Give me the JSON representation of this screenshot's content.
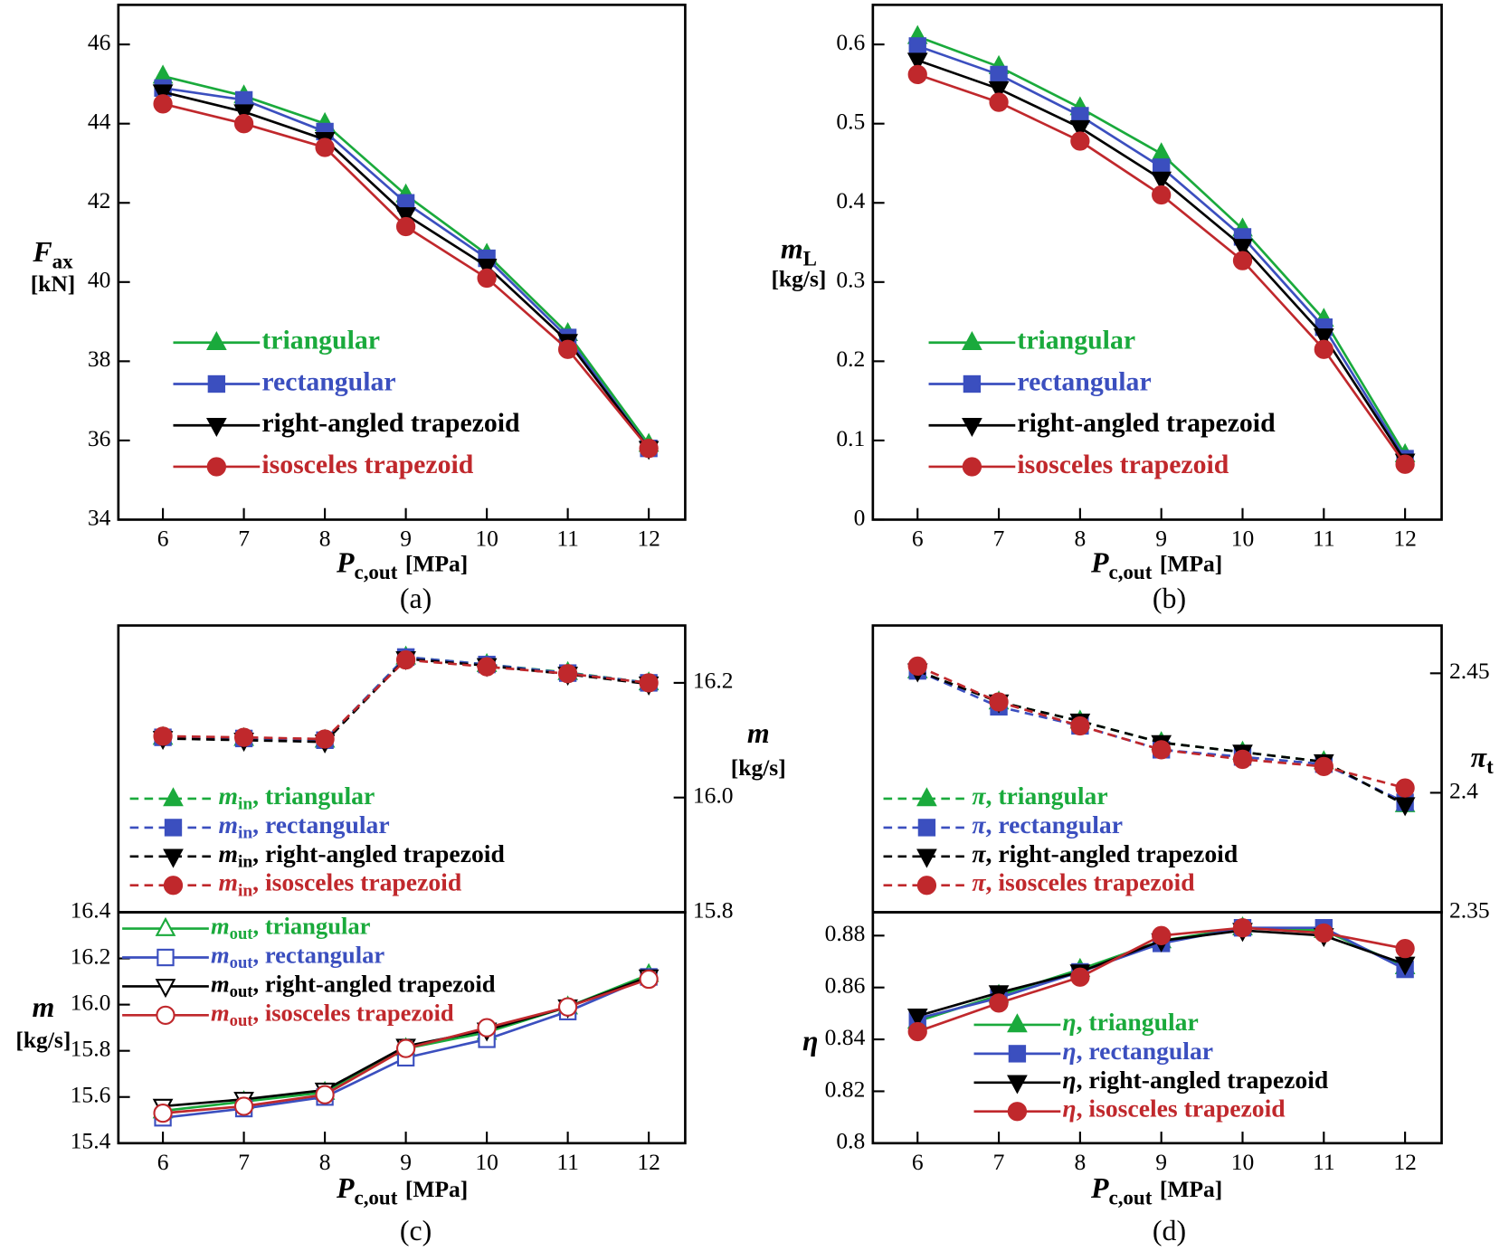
{
  "chart_data": [
    {
      "type": "line",
      "caption": "(a)",
      "xlabel": {
        "text": "P",
        "sub": "c,out",
        "unit": "[MPa]"
      },
      "ylabel": {
        "text": "F",
        "sub": "ax",
        "unit": "[kN]"
      },
      "y_axis_position": "left",
      "x": [
        6,
        7,
        8,
        9,
        10,
        11,
        12
      ],
      "xlim": [
        5.45,
        12.45
      ],
      "xticks": [
        6,
        7,
        8,
        9,
        10,
        11,
        12
      ],
      "ylim": [
        34,
        47
      ],
      "yticks": [
        34,
        36,
        38,
        40,
        42,
        44,
        46
      ],
      "series": [
        {
          "name": "triangular",
          "color": "#1aaa3c",
          "marker": "triangle-up",
          "filled": true,
          "line_style": "solid",
          "values": [
            45.2,
            44.7,
            44.0,
            42.2,
            40.7,
            38.7,
            35.9
          ]
        },
        {
          "name": "rectangular",
          "color": "#3b4fbf",
          "marker": "square",
          "filled": true,
          "line_style": "solid",
          "values": [
            44.9,
            44.6,
            43.8,
            42.0,
            40.6,
            38.6,
            35.8
          ]
        },
        {
          "name": "right-angled trapezoid",
          "color": "#000000",
          "marker": "triangle-down",
          "filled": true,
          "line_style": "solid",
          "values": [
            44.8,
            44.3,
            43.6,
            41.7,
            40.4,
            38.5,
            35.8
          ]
        },
        {
          "name": "isosceles trapezoid",
          "color": "#c0282c",
          "marker": "circle",
          "filled": true,
          "line_style": "solid",
          "values": [
            44.5,
            44.0,
            43.4,
            41.4,
            40.1,
            38.3,
            35.8
          ]
        }
      ]
    },
    {
      "type": "line",
      "caption": "(b)",
      "xlabel": {
        "text": "P",
        "sub": "c,out",
        "unit": "[MPa]"
      },
      "ylabel": {
        "text": "m",
        "sub": "L",
        "unit": "[kg/s]"
      },
      "y_axis_position": "left",
      "x": [
        6,
        7,
        8,
        9,
        10,
        11,
        12
      ],
      "xlim": [
        5.45,
        12.45
      ],
      "xticks": [
        6,
        7,
        8,
        9,
        10,
        11,
        12
      ],
      "ylim": [
        0,
        0.65
      ],
      "yticks": [
        0,
        0.1,
        0.2,
        0.3,
        0.4,
        0.5,
        0.6
      ],
      "series": [
        {
          "name": "triangular",
          "color": "#1aaa3c",
          "marker": "triangle-up",
          "filled": true,
          "line_style": "solid",
          "values": [
            0.61,
            0.572,
            0.52,
            0.462,
            0.367,
            0.253,
            0.082
          ]
        },
        {
          "name": "rectangular",
          "color": "#3b4fbf",
          "marker": "square",
          "filled": true,
          "line_style": "solid",
          "values": [
            0.598,
            0.562,
            0.51,
            0.445,
            0.357,
            0.243,
            0.077
          ]
        },
        {
          "name": "right-angled trapezoid",
          "color": "#000000",
          "marker": "triangle-down",
          "filled": true,
          "line_style": "solid",
          "values": [
            0.58,
            0.544,
            0.495,
            0.43,
            0.345,
            0.232,
            0.074
          ]
        },
        {
          "name": "isosceles trapezoid",
          "color": "#c0282c",
          "marker": "circle",
          "filled": true,
          "line_style": "solid",
          "values": [
            0.562,
            0.527,
            0.478,
            0.41,
            0.327,
            0.215,
            0.07
          ]
        }
      ]
    },
    {
      "type": "line",
      "ylabel": {
        "text": "m",
        "unit": "[kg/s]"
      },
      "y_axis_position": "right",
      "legend_prefix": {
        "symbol": "m",
        "sub": "in",
        "sep": ","
      },
      "x": [
        6,
        7,
        8,
        9,
        10,
        11,
        12
      ],
      "xlim": [
        5.45,
        12.45
      ],
      "ylim": [
        15.8,
        16.3
      ],
      "yticks": [
        15.8,
        {
          "value": 16,
          "label": "16.0"
        },
        16.2
      ],
      "series": [
        {
          "name": "triangular",
          "color": "#1aaa3c",
          "marker": "triangle-up",
          "filled": true,
          "line_style": "dashed",
          "values": [
            16.105,
            16.103,
            16.1,
            16.245,
            16.232,
            16.218,
            16.2
          ]
        },
        {
          "name": "rectangular",
          "color": "#3b4fbf",
          "marker": "square",
          "filled": true,
          "line_style": "dashed",
          "values": [
            16.105,
            16.103,
            16.1,
            16.245,
            16.232,
            16.217,
            16.2
          ]
        },
        {
          "name": "right-angled trapezoid",
          "color": "#000000",
          "marker": "triangle-down",
          "filled": true,
          "line_style": "dashed",
          "values": [
            16.103,
            16.1,
            16.097,
            16.242,
            16.23,
            16.215,
            16.198
          ]
        },
        {
          "name": "isosceles trapezoid",
          "color": "#c0282c",
          "marker": "circle",
          "filled": true,
          "line_style": "dashed",
          "values": [
            16.107,
            16.105,
            16.102,
            16.24,
            16.228,
            16.216,
            16.2
          ]
        }
      ]
    },
    {
      "type": "line",
      "caption": "(c)",
      "xlabel": {
        "text": "P",
        "sub": "c,out",
        "unit": "[MPa]"
      },
      "ylabel": {
        "text": "m",
        "unit": "[kg/s]"
      },
      "y_axis_position": "left",
      "legend_prefix": {
        "symbol": "m",
        "sub": "out",
        "sep": ","
      },
      "x": [
        6,
        7,
        8,
        9,
        10,
        11,
        12
      ],
      "xlim": [
        5.45,
        12.45
      ],
      "xticks": [
        6,
        7,
        8,
        9,
        10,
        11,
        12
      ],
      "ylim": [
        15.4,
        16.4
      ],
      "yticks": [
        15.4,
        15.6,
        15.8,
        {
          "value": 16,
          "label": "16.0"
        },
        16.2,
        16.4
      ],
      "series": [
        {
          "name": "triangular",
          "color": "#1aaa3c",
          "marker": "triangle-up",
          "filled": false,
          "line_style": "solid",
          "values": [
            15.54,
            15.58,
            15.62,
            15.81,
            15.88,
            15.99,
            16.13
          ]
        },
        {
          "name": "rectangular",
          "color": "#3b4fbf",
          "marker": "square",
          "filled": false,
          "line_style": "solid",
          "values": [
            15.51,
            15.55,
            15.6,
            15.77,
            15.85,
            15.97,
            16.12
          ]
        },
        {
          "name": "right-angled trapezoid",
          "color": "#000000",
          "marker": "triangle-down",
          "filled": false,
          "line_style": "solid",
          "values": [
            15.56,
            15.59,
            15.63,
            15.82,
            15.89,
            15.99,
            16.12
          ]
        },
        {
          "name": "isosceles trapezoid",
          "color": "#c0282c",
          "marker": "circle",
          "filled": false,
          "line_style": "solid",
          "values": [
            15.53,
            15.56,
            15.61,
            15.81,
            15.9,
            15.99,
            16.11
          ]
        }
      ]
    },
    {
      "type": "line",
      "ylabel": {
        "text": "π",
        "sub": "t"
      },
      "y_axis_position": "right",
      "legend_prefix": {
        "symbol": "π",
        "sep": ","
      },
      "x": [
        6,
        7,
        8,
        9,
        10,
        11,
        12
      ],
      "xlim": [
        5.45,
        12.45
      ],
      "ylim": [
        2.35,
        2.47
      ],
      "yticks": [
        2.35,
        2.4,
        2.45
      ],
      "series": [
        {
          "name": "triangular",
          "color": "#1aaa3c",
          "marker": "triangle-up",
          "filled": true,
          "line_style": "dashed",
          "values": [
            2.451,
            2.438,
            2.43,
            2.421,
            2.417,
            2.413,
            2.395
          ]
        },
        {
          "name": "rectangular",
          "color": "#3b4fbf",
          "marker": "square",
          "filled": true,
          "line_style": "dashed",
          "values": [
            2.451,
            2.436,
            2.428,
            2.418,
            2.415,
            2.412,
            2.396
          ]
        },
        {
          "name": "right-angled trapezoid",
          "color": "#000000",
          "marker": "triangle-down",
          "filled": true,
          "line_style": "dashed",
          "values": [
            2.451,
            2.438,
            2.43,
            2.421,
            2.417,
            2.413,
            2.395
          ]
        },
        {
          "name": "isosceles trapezoid",
          "color": "#c0282c",
          "marker": "circle",
          "filled": true,
          "line_style": "dashed",
          "values": [
            2.453,
            2.438,
            2.428,
            2.418,
            2.414,
            2.411,
            2.402
          ]
        }
      ]
    },
    {
      "type": "line",
      "caption": "(d)",
      "xlabel": {
        "text": "P",
        "sub": "c,out",
        "unit": "[MPa]"
      },
      "ylabel": {
        "text": "η"
      },
      "y_axis_position": "left",
      "legend_prefix": {
        "symbol": "η",
        "sep": ","
      },
      "x": [
        6,
        7,
        8,
        9,
        10,
        11,
        12
      ],
      "xlim": [
        5.45,
        12.45
      ],
      "xticks": [
        6,
        7,
        8,
        9,
        10,
        11,
        12
      ],
      "ylim": [
        0.8,
        0.889
      ],
      "yticks": [
        0.8,
        0.82,
        0.84,
        0.86,
        0.88
      ],
      "series": [
        {
          "name": "triangular",
          "color": "#1aaa3c",
          "marker": "triangle-up",
          "filled": true,
          "line_style": "solid",
          "values": [
            0.847,
            0.857,
            0.867,
            0.878,
            0.883,
            0.882,
            0.868
          ]
        },
        {
          "name": "rectangular",
          "color": "#3b4fbf",
          "marker": "square",
          "filled": true,
          "line_style": "solid",
          "values": [
            0.848,
            0.856,
            0.866,
            0.877,
            0.883,
            0.883,
            0.867
          ]
        },
        {
          "name": "right-angled trapezoid",
          "color": "#000000",
          "marker": "triangle-down",
          "filled": true,
          "line_style": "solid",
          "values": [
            0.849,
            0.858,
            0.866,
            0.878,
            0.882,
            0.88,
            0.869
          ]
        },
        {
          "name": "isosceles trapezoid",
          "color": "#c0282c",
          "marker": "circle",
          "filled": true,
          "line_style": "solid",
          "values": [
            0.843,
            0.854,
            0.864,
            0.88,
            0.883,
            0.881,
            0.875
          ]
        }
      ]
    }
  ]
}
